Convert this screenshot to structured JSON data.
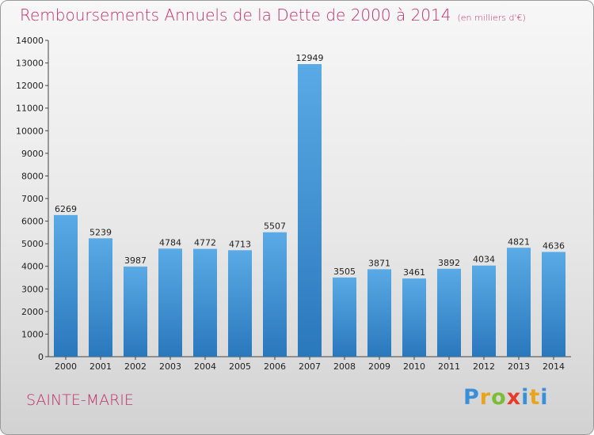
{
  "header": {
    "title": "Remboursements Annuels de la Dette de 2000 à 2014",
    "subtitle": "(en milliers d'€)"
  },
  "footer": {
    "place": "SAINTE-MARIE",
    "logo": "Proxiti"
  },
  "colors": {
    "bar_light": "#5aaae6",
    "bar_dark": "#2a78bc",
    "title": "#c0306a"
  },
  "chart_data": {
    "type": "bar",
    "title": "Remboursements Annuels de la Dette de 2000 à 2014",
    "subtitle": "(en milliers d'€)",
    "xlabel": "",
    "ylabel": "",
    "categories": [
      "2000",
      "2001",
      "2002",
      "2003",
      "2004",
      "2005",
      "2006",
      "2007",
      "2008",
      "2009",
      "2010",
      "2011",
      "2012",
      "2013",
      "2014"
    ],
    "values": [
      6269,
      5239,
      3987,
      4784,
      4772,
      4713,
      5507,
      12949,
      3505,
      3871,
      3461,
      3892,
      4034,
      4821,
      4636
    ],
    "ylim": [
      0,
      14000
    ],
    "yticks": [
      0,
      1000,
      2000,
      3000,
      4000,
      5000,
      6000,
      7000,
      8000,
      9000,
      10000,
      11000,
      12000,
      13000,
      14000
    ],
    "grid": false,
    "data_labels": true
  }
}
